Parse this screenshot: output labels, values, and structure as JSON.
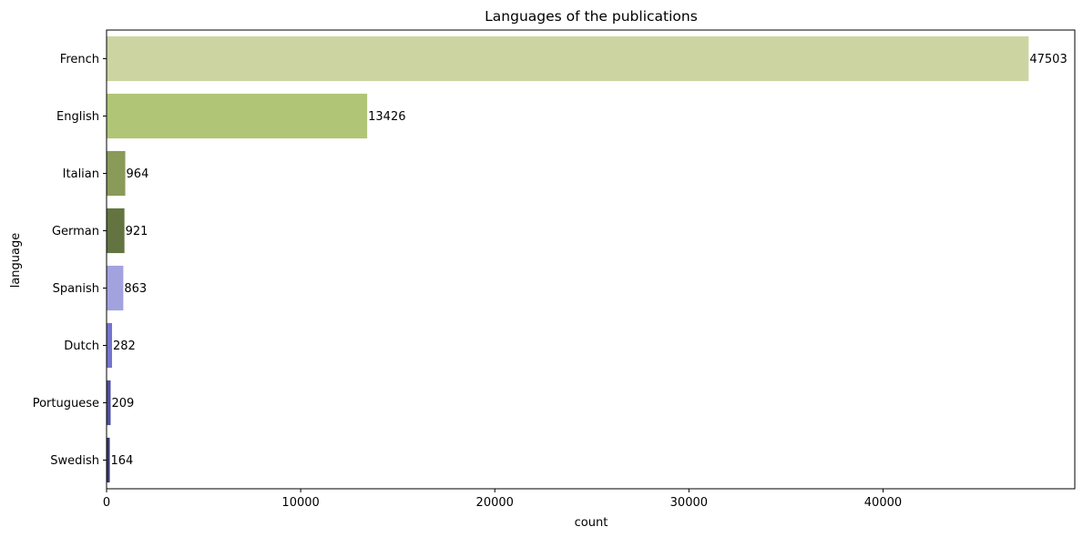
{
  "chart_data": {
    "type": "bar",
    "orientation": "horizontal",
    "title": "Languages of the publications",
    "xlabel": "count",
    "ylabel": "language",
    "categories": [
      "French",
      "English",
      "Italian",
      "German",
      "Spanish",
      "Dutch",
      "Portuguese",
      "Swedish"
    ],
    "values": [
      47503,
      13426,
      964,
      921,
      863,
      282,
      209,
      164
    ],
    "data_labels": [
      "47503",
      "13426",
      "964",
      "921",
      "863",
      "282",
      "209",
      "164"
    ],
    "colors": [
      "#ccd5a2",
      "#b0c575",
      "#8a9a58",
      "#637440",
      "#a2a3de",
      "#7474d0",
      "#4f4fa0",
      "#373769"
    ],
    "xlim": [
      0,
      49879
    ],
    "xticks": [
      0,
      10000,
      20000,
      30000,
      40000
    ],
    "xtick_labels": [
      "0",
      "10000",
      "20000",
      "30000",
      "40000"
    ],
    "grid": false,
    "legend": "none"
  }
}
